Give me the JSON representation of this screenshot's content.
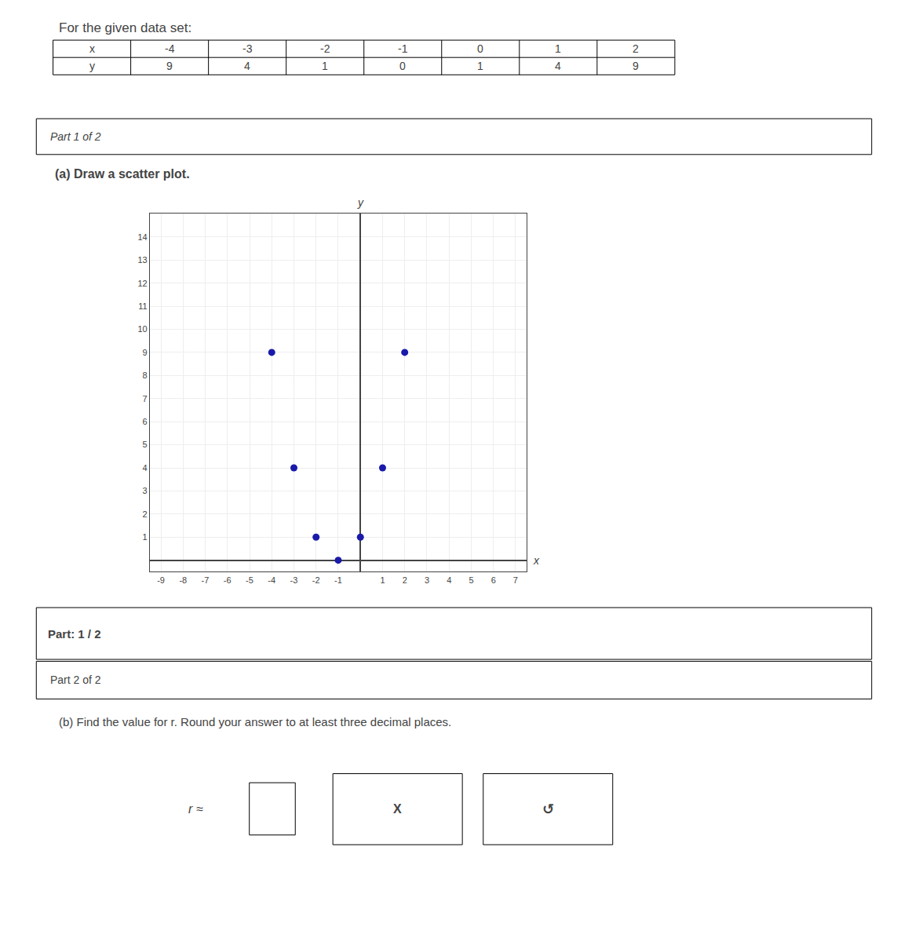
{
  "chart_data": {
    "type": "scatter",
    "title": "For the given data set:",
    "x_label": "x",
    "y_label": "y",
    "x": [
      -4,
      -3,
      -2,
      -1,
      0,
      1,
      2
    ],
    "values": [
      9,
      4,
      1,
      0,
      1,
      4,
      9
    ],
    "color": "#1a1aaa",
    "xlim": [
      -9.5,
      7.5
    ],
    "ylim": [
      -0.5,
      15
    ],
    "xticks": [
      -9,
      -8,
      -7,
      -6,
      -5,
      -4,
      -3,
      -2,
      -1,
      1,
      2,
      3,
      4,
      5,
      6,
      7
    ],
    "yticks": [
      1,
      2,
      3,
      4,
      5,
      6,
      7,
      8,
      9,
      10,
      11,
      12,
      13,
      14
    ],
    "grid": true,
    "annotations": [
      "Part 1 of 2",
      "(a) Draw a scatter plot.",
      "Part: 1 / 2",
      "Part 2 of 2",
      "(b) Find the value for r. Round your answer to at least three decimal places.",
      "r ≈",
      "X",
      "↺"
    ]
  }
}
